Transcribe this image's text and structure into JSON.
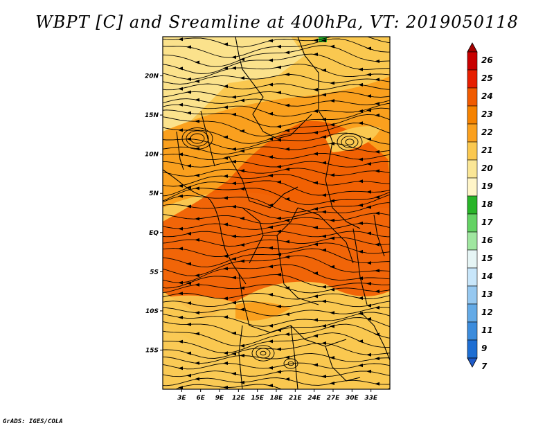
{
  "title": "WBPT [C] and Sreamline at 400hPa, VT: 2019050118",
  "footer": "GrADS: IGES/COLA",
  "map": {
    "lon_range": [
      0,
      36
    ],
    "lat_range": [
      -20,
      25
    ],
    "lon_ticks": [
      "3E",
      "6E",
      "9E",
      "12E",
      "15E",
      "18E",
      "21E",
      "24E",
      "27E",
      "30E",
      "33E"
    ],
    "lat_ticks": [
      "20N",
      "15N",
      "10N",
      "5N",
      "EQ",
      "5S",
      "10S",
      "15S"
    ]
  },
  "colorbar": {
    "labels": [
      "26",
      "25",
      "24",
      "23",
      "22",
      "21",
      "20",
      "19",
      "18",
      "17",
      "16",
      "15",
      "14",
      "13",
      "12",
      "11",
      "9",
      "7"
    ],
    "colors": [
      "#a50000",
      "#c80000",
      "#e61e00",
      "#f05a00",
      "#f58200",
      "#faa01e",
      "#fac850",
      "#fae696",
      "#fff5c8",
      "#28b428",
      "#64d264",
      "#a0e6a0",
      "#e6f5f5",
      "#c8e6fa",
      "#96c8f0",
      "#64aae6",
      "#3c8cdc",
      "#1e6ed2",
      "#1e5ac8"
    ]
  }
}
